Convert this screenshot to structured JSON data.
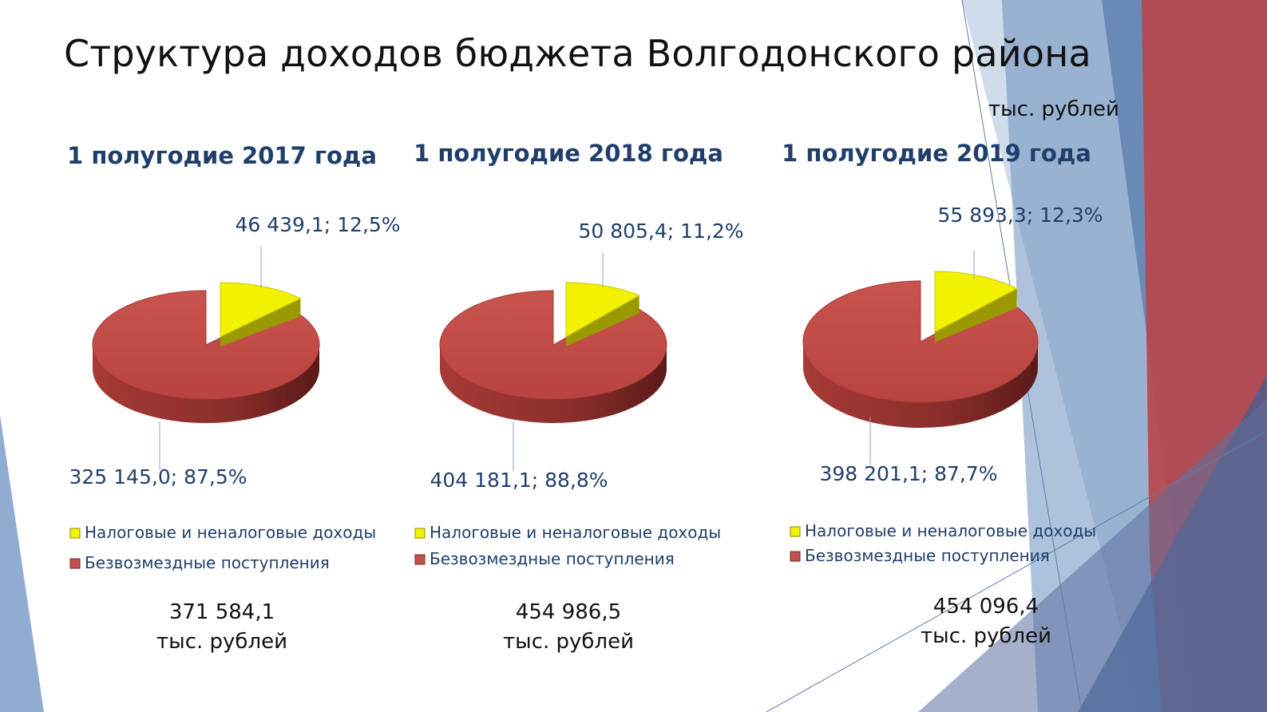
{
  "page": {
    "title": "Структура доходов бюджета Волгодонского района",
    "unit": "тыс. рублей"
  },
  "colors": {
    "tax": "#f2f200",
    "gratuitous": "#c0504d",
    "text_accent": "#1f3f6b"
  },
  "chart_data": [
    {
      "type": "pie",
      "title": "1 полугодие 2017 года",
      "slices": [
        {
          "name": "Налоговые и неналоговые  доходы",
          "value": 46439.1,
          "percent": 12.5,
          "label": "46 439,1; 12,5%"
        },
        {
          "name": "Безвозмездные поступления",
          "value": 325145.0,
          "percent": 87.5,
          "label": "325 145,0; 87,5%"
        }
      ],
      "total_value": "371 584,1",
      "total_unit": "тыс. рублей",
      "legend": "bottom"
    },
    {
      "type": "pie",
      "title": "1 полугодие 2018 года",
      "slices": [
        {
          "name": "Налоговые и неналоговые  доходы",
          "value": 50805.4,
          "percent": 11.2,
          "label": "50 805,4; 11,2%"
        },
        {
          "name": "Безвозмездные поступления",
          "value": 404181.1,
          "percent": 88.8,
          "label": "404 181,1; 88,8%"
        }
      ],
      "total_value": "454 986,5",
      "total_unit": "тыс. рублей",
      "legend": "bottom"
    },
    {
      "type": "pie",
      "title": "1 полугодие 2019 года",
      "slices": [
        {
          "name": "Налоговые и неналоговые  доходы",
          "value": 55893.3,
          "percent": 12.3,
          "label": "55 893,3; 12,3%"
        },
        {
          "name": "Безвозмездные поступления",
          "value": 398201.1,
          "percent": 87.7,
          "label": "398 201,1; 87,7%"
        }
      ],
      "total_value": "454 096,4",
      "total_unit": "тыс. рублей",
      "legend": "bottom"
    }
  ]
}
